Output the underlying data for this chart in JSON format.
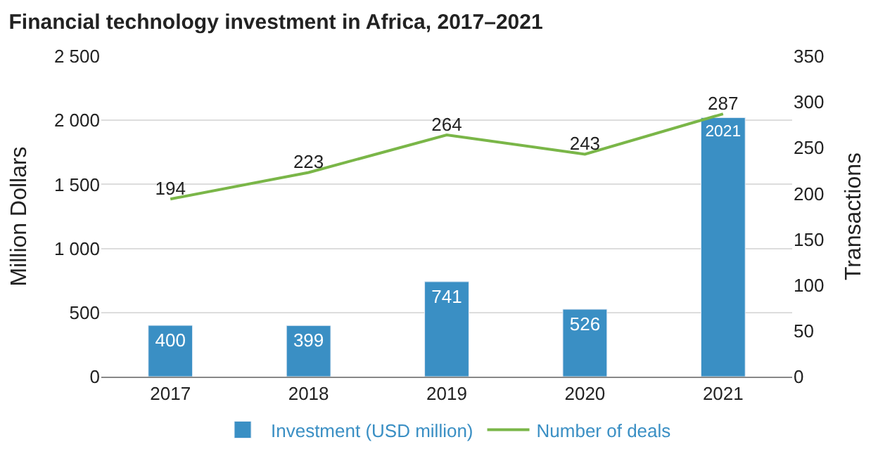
{
  "chart_data": {
    "type": "bar",
    "title": "Financial technology investment in Africa, 2017–2021",
    "ylabel": "Million Dollars",
    "y2label": "Transactions",
    "categories": [
      "2017",
      "2018",
      "2019",
      "2020",
      "2021"
    ],
    "series": [
      {
        "name": "Investment (USD million)",
        "color": "#3a8fc4",
        "values": [
          400,
          399,
          741,
          526,
          2021
        ]
      },
      {
        "name": "Number of deals",
        "type": "line",
        "axis": "y2",
        "color": "#7ab648",
        "values": [
          194,
          223,
          264,
          243,
          287
        ]
      }
    ],
    "ylim": [
      0,
      2500
    ],
    "yticks": [
      0,
      500,
      {
        "value": 1000,
        "label": "1 000"
      },
      {
        "value": 1500,
        "label": "1 500"
      },
      {
        "value": 2000,
        "label": "2 000"
      },
      {
        "value": 2500,
        "label": "2 500"
      }
    ],
    "y2lim": [
      0,
      350
    ],
    "y2ticks": [
      0,
      50,
      100,
      150,
      200,
      250,
      300,
      350
    ],
    "data_labels": true,
    "grid": "y",
    "legend": "bottom",
    "marker": "none",
    "line_style": "solid"
  }
}
